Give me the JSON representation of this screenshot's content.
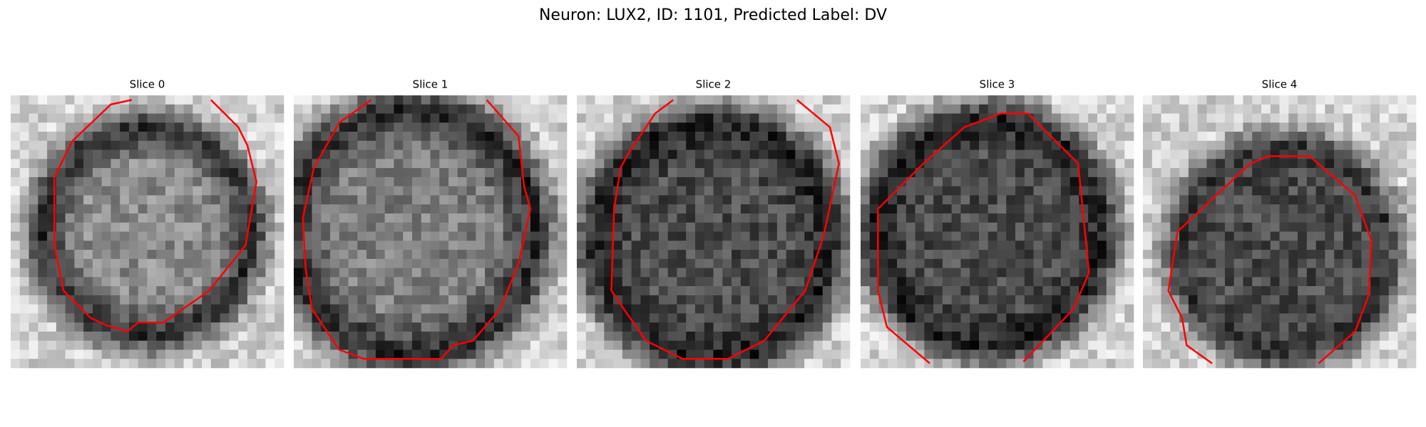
{
  "title": "Neuron: LUX2, ID: 1101, Predicted Label: DV",
  "panels": [
    {
      "title": "Slice 0"
    },
    {
      "title": "Slice 1"
    },
    {
      "title": "Slice 2"
    },
    {
      "title": "Slice 3"
    },
    {
      "title": "Slice 4"
    }
  ]
}
